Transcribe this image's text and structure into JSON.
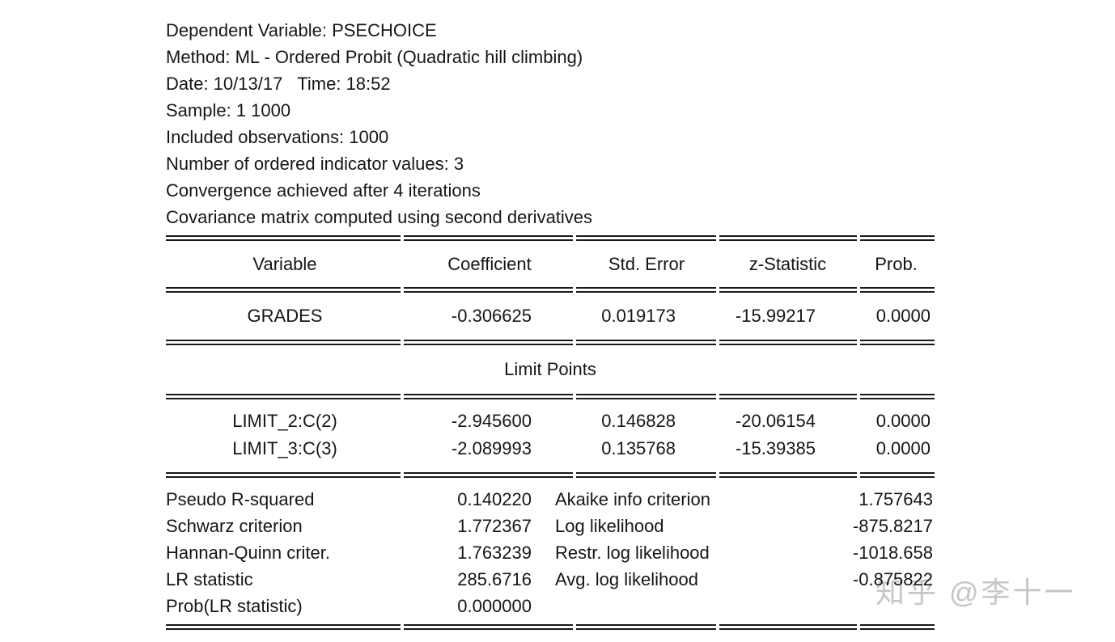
{
  "header_lines": [
    "Dependent Variable: PSECHOICE",
    "Method: ML - Ordered Probit (Quadratic hill climbing)",
    "Date: 10/13/17   Time: 18:52",
    "Sample: 1 1000",
    "Included observations: 1000",
    "Number of ordered indicator values: 3",
    "Convergence achieved after 4 iterations",
    "Covariance matrix computed using second derivatives"
  ],
  "table": {
    "columns": [
      "Variable",
      "Coefficient",
      "Std. Error",
      "z-Statistic",
      "Prob."
    ],
    "coefficient_rows": [
      {
        "variable": "GRADES",
        "coefficient": "-0.306625",
        "std_error": "0.019173",
        "z_stat": "-15.99217",
        "prob": "0.0000"
      }
    ],
    "limit_points_label": "Limit Points",
    "limit_rows": [
      {
        "variable": "LIMIT_2:C(2)",
        "coefficient": "-2.945600",
        "std_error": "0.146828",
        "z_stat": "-20.06154",
        "prob": "0.0000"
      },
      {
        "variable": "LIMIT_3:C(3)",
        "coefficient": "-2.089993",
        "std_error": "0.135768",
        "z_stat": "-15.39385",
        "prob": "0.0000"
      }
    ],
    "summary_stats": [
      {
        "label_left": "Pseudo R-squared",
        "value_left": "0.140220",
        "label_right": "Akaike info criterion",
        "value_right": "1.757643"
      },
      {
        "label_left": "Schwarz criterion",
        "value_left": "1.772367",
        "label_right": "Log likelihood",
        "value_right": "-875.8217"
      },
      {
        "label_left": "Hannan-Quinn criter.",
        "value_left": "1.763239",
        "label_right": "Restr. log likelihood",
        "value_right": "-1018.658"
      },
      {
        "label_left": "LR statistic",
        "value_left": "285.6716",
        "label_right": "Avg. log likelihood",
        "value_right": "-0.875822"
      },
      {
        "label_left": "Prob(LR statistic)",
        "value_left": "0.000000",
        "label_right": "",
        "value_right": ""
      }
    ]
  },
  "watermark": {
    "text": "知乎 @李十一",
    "color": "#c6c6c6"
  }
}
